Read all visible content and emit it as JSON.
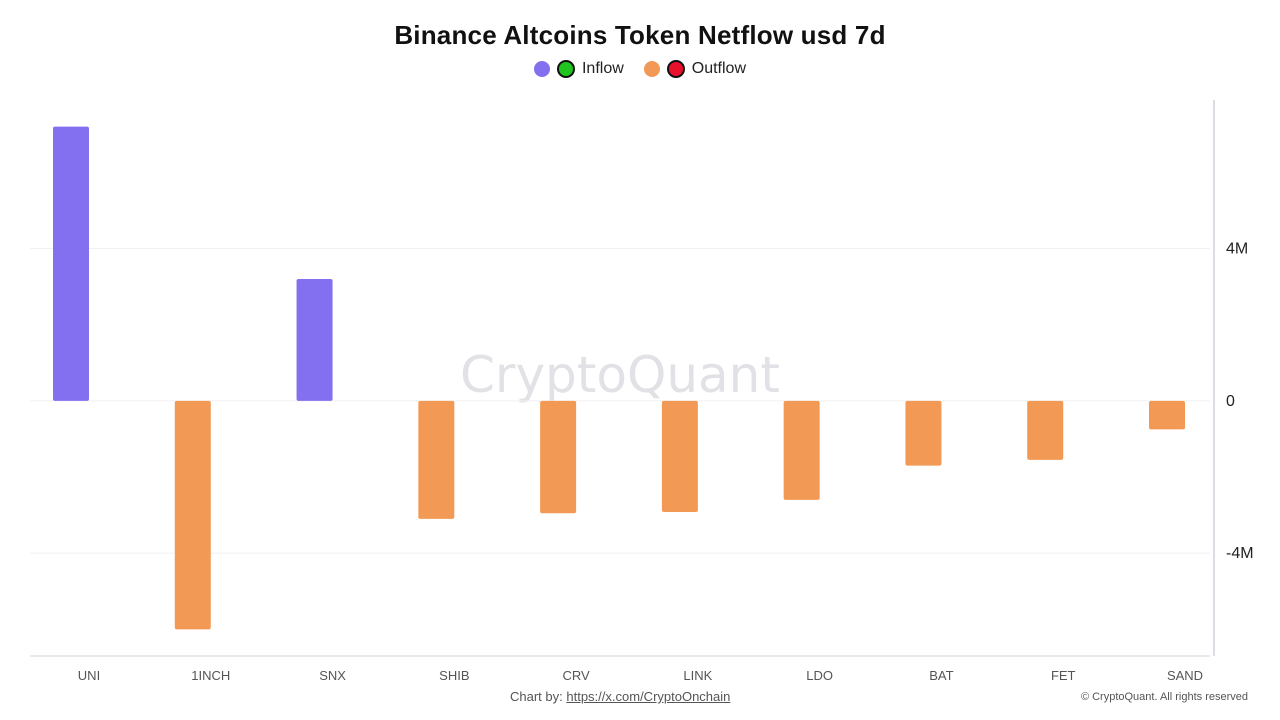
{
  "chart_data": {
    "type": "bar",
    "title": "Binance Altcoins Token Netflow usd 7d",
    "categories": [
      "UNI",
      "1INCH",
      "SNX",
      "SHIB",
      "CRV",
      "LINK",
      "LDO",
      "BAT",
      "FET",
      "SAND"
    ],
    "values": [
      7200000,
      -6000000,
      3200000,
      -3100000,
      -2950000,
      -2920000,
      -2600000,
      -1700000,
      -1550000,
      -750000
    ],
    "ylim": [
      -6700000,
      7900000
    ],
    "yticks": [
      4000000,
      0,
      -4000000
    ],
    "ytick_labels": [
      "4M",
      "0",
      "-4M"
    ],
    "y_axis_position": "right",
    "grid": true,
    "legend": [
      {
        "name": "Inflow",
        "color": "#8270F0",
        "marker_color": "#1FC41F"
      },
      {
        "name": "Outflow",
        "color": "#F29A55",
        "marker_color": "#E8102A"
      }
    ],
    "colors": {
      "positive": "#8270F0",
      "negative": "#F29A55"
    },
    "watermark": "CryptoQuant"
  },
  "footer": {
    "credit_label": "Chart by:",
    "credit_link": "https://x.com/CryptoOnchain",
    "copyright": "© CryptoQuant. All rights reserved"
  }
}
